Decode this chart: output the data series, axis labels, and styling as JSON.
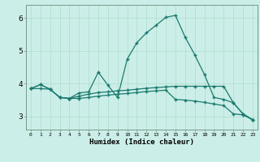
{
  "xlabel": "Humidex (Indice chaleur)",
  "bg_color": "#cceee8",
  "line_color": "#1a7a6e",
  "grid_color": "#aaddcc",
  "xlim": [
    -0.5,
    23.5
  ],
  "ylim": [
    2.6,
    6.4
  ],
  "yticks": [
    3,
    4,
    5,
    6
  ],
  "xticks": [
    0,
    1,
    2,
    3,
    4,
    5,
    6,
    7,
    8,
    9,
    10,
    11,
    12,
    13,
    14,
    15,
    16,
    17,
    18,
    19,
    20,
    21,
    22,
    23
  ],
  "line1_x": [
    0,
    1,
    2,
    3,
    4,
    5,
    6,
    7,
    8,
    9,
    10,
    11,
    12,
    13,
    14,
    15,
    16,
    17,
    18,
    19,
    20,
    21,
    22,
    23
  ],
  "line1_y": [
    3.85,
    3.97,
    3.83,
    3.58,
    3.55,
    3.72,
    3.75,
    4.35,
    3.95,
    3.58,
    4.75,
    5.25,
    5.55,
    5.78,
    6.02,
    6.08,
    5.42,
    4.88,
    4.28,
    3.58,
    3.52,
    3.42,
    3.08,
    2.9
  ],
  "line2_x": [
    0,
    1,
    2,
    3,
    4,
    5,
    6,
    7,
    8,
    9,
    10,
    11,
    12,
    13,
    14,
    15,
    16,
    17,
    18,
    19,
    20,
    21,
    22,
    23
  ],
  "line2_y": [
    3.85,
    3.97,
    3.83,
    3.58,
    3.55,
    3.62,
    3.68,
    3.73,
    3.75,
    3.78,
    3.8,
    3.83,
    3.86,
    3.88,
    3.9,
    3.92,
    3.92,
    3.92,
    3.92,
    3.92,
    3.92,
    3.42,
    3.08,
    2.9
  ],
  "line3_x": [
    0,
    1,
    2,
    3,
    4,
    5,
    6,
    7,
    8,
    9,
    10,
    11,
    12,
    13,
    14,
    15,
    16,
    17,
    18,
    19,
    20,
    21,
    22,
    23
  ],
  "line3_y": [
    3.85,
    3.85,
    3.83,
    3.58,
    3.55,
    3.55,
    3.58,
    3.62,
    3.65,
    3.68,
    3.7,
    3.73,
    3.76,
    3.78,
    3.8,
    3.52,
    3.5,
    3.47,
    3.43,
    3.38,
    3.33,
    3.08,
    3.05,
    2.9
  ]
}
